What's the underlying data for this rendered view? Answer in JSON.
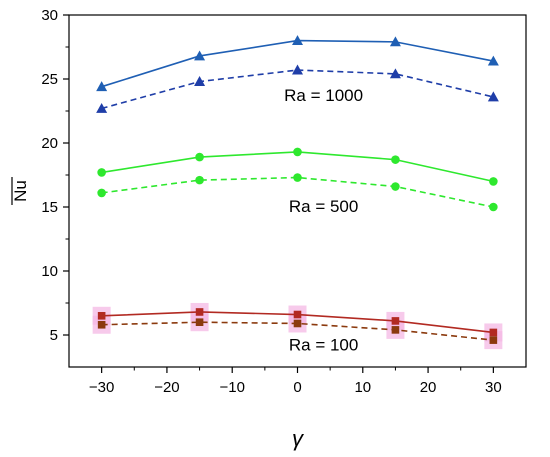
{
  "chart_data": {
    "type": "line",
    "xlabel": "γ",
    "ylabel": "Nu",
    "ylabel_overline": true,
    "xlim": [
      -35,
      35
    ],
    "ylim": [
      2.5,
      30
    ],
    "xticks": [
      -30,
      -20,
      -10,
      0,
      10,
      20,
      30
    ],
    "yticks": [
      5,
      10,
      15,
      20,
      25,
      30
    ],
    "grid": false,
    "x": [
      -30,
      -15,
      0,
      15,
      30
    ],
    "series": [
      {
        "group": "Ra = 1000",
        "style": "solid",
        "marker": "triangle",
        "color": "#1f5fb4",
        "values": [
          24.4,
          26.8,
          28.0,
          27.9,
          26.4
        ]
      },
      {
        "group": "Ra = 1000",
        "style": "dashed",
        "marker": "triangle",
        "color": "#1f3ea8",
        "values": [
          22.7,
          24.8,
          25.7,
          25.4,
          23.6
        ]
      },
      {
        "group": "Ra = 500",
        "style": "solid",
        "marker": "circle",
        "color": "#2ee82e",
        "values": [
          17.7,
          18.9,
          19.3,
          18.7,
          17.0
        ]
      },
      {
        "group": "Ra = 500",
        "style": "dashed",
        "marker": "circle",
        "color": "#2ee82e",
        "values": [
          16.1,
          17.1,
          17.3,
          16.6,
          15.0
        ]
      },
      {
        "group": "Ra = 100",
        "style": "solid",
        "marker": "square",
        "color": "#b22a22",
        "values": [
          6.5,
          6.8,
          6.6,
          6.1,
          5.2
        ]
      },
      {
        "group": "Ra = 100",
        "style": "dashed",
        "marker": "square",
        "color": "#8b3a0e",
        "values": [
          5.8,
          6.0,
          5.9,
          5.4,
          4.6
        ]
      }
    ],
    "annotations": [
      {
        "text": "Ra = 1000",
        "x": 4,
        "y": 23.3
      },
      {
        "text": "Ra = 500",
        "x": 4,
        "y": 14.6
      },
      {
        "text": "Ra = 100",
        "x": 4,
        "y": 3.8
      }
    ],
    "highlight_color": "#f4b8e4"
  }
}
